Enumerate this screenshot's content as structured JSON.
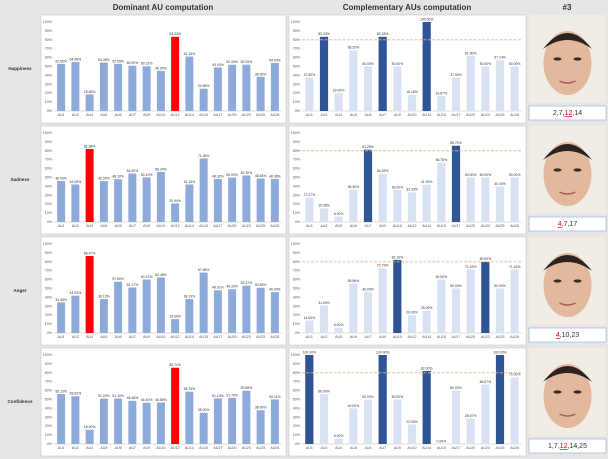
{
  "headers": [
    "Dominant AU computation",
    "Complementary AUs computation",
    "#3"
  ],
  "rows": [
    {
      "label": "Happiness",
      "codes": [
        "2,7,",
        "12",
        ",14"
      ],
      "highlight": 1
    },
    {
      "label": "Sadness",
      "codes": [
        "4",
        ",7,17"
      ],
      "highlight": 0
    },
    {
      "label": "Anger",
      "codes": [
        "4",
        ",10,23"
      ],
      "highlight": 0
    },
    {
      "label": "Confidence",
      "codes": [
        "1,7,",
        "12",
        ",14,25"
      ],
      "highlight": 1
    }
  ],
  "chart_data": [
    {
      "type": "bar",
      "categories": [
        "AU1",
        "AU2",
        "AU4",
        "AU5",
        "AU6",
        "AU7",
        "AU9",
        "AU10",
        "AU12",
        "AU14",
        "AU15",
        "AU17",
        "AU20",
        "AU23",
        "AU25",
        "AU26"
      ],
      "values": [
        52.95,
        54.98,
        18.58,
        54.35,
        52.95,
        50.92,
        50.23,
        45.0,
        83.33,
        61.15,
        24.96,
        49.0,
        52.0,
        52.0,
        38.35,
        54.0
      ],
      "value_labels": [
        "52.95%",
        "54.98%",
        "18.58%",
        "54.35%",
        "52.95%",
        "50.92%",
        "50.23%",
        "45.00%",
        "83.33%",
        "61.15%",
        "24.96%",
        "49.00%",
        "52.00%",
        "52.00%",
        "38.35%",
        "54.00%"
      ],
      "bar_colors": [
        "#8eaadb",
        "#8eaadb",
        "#8eaadb",
        "#8eaadb",
        "#8eaadb",
        "#8eaadb",
        "#8eaadb",
        "#8eaadb",
        "#ff0000",
        "#8eaadb",
        "#8eaadb",
        "#8eaadb",
        "#8eaadb",
        "#8eaadb",
        "#8eaadb",
        "#8eaadb"
      ],
      "ylim": [
        0,
        100
      ],
      "yticks": [
        {
          "value": 0,
          "label": "0%"
        },
        {
          "value": 10,
          "label": "10%"
        },
        {
          "value": 20,
          "label": "20%"
        },
        {
          "value": 30,
          "label": "30%"
        },
        {
          "value": 40,
          "label": "40%"
        },
        {
          "value": 50,
          "label": "50%"
        },
        {
          "value": 60,
          "label": "60%"
        },
        {
          "value": 70,
          "label": "70%"
        },
        {
          "value": 80,
          "label": "80%"
        },
        {
          "value": 90,
          "label": "90%"
        },
        {
          "value": 100,
          "label": "100%"
        }
      ]
    },
    {
      "type": "bar",
      "categories": [
        "AU1",
        "AU2",
        "AU4",
        "AU5",
        "AU6",
        "AU7",
        "AU9",
        "AU10",
        "AU14",
        "AU15",
        "AU17",
        "AU20",
        "AU23",
        "AU25",
        "AU26"
      ],
      "values": [
        37.5,
        83.33,
        20.0,
        68.25,
        50.0,
        83.33,
        50.0,
        18.18,
        100.0,
        16.67,
        37.5,
        61.9,
        50.0,
        57.14,
        50.0
      ],
      "value_labels": [
        "37.50%",
        "83.33%",
        "20.00%",
        "68.25%",
        "50.00%",
        "83.33%",
        "50.00%",
        "18.18%",
        "100.00%",
        "16.67%",
        "37.50%",
        "61.90%",
        "50.00%",
        "57.14%",
        "50.00%"
      ],
      "bar_colors": [
        "#d9e2f3",
        "#2f5597",
        "#d9e2f3",
        "#d9e2f3",
        "#d9e2f3",
        "#2f5597",
        "#d9e2f3",
        "#d9e2f3",
        "#2f5597",
        "#d9e2f3",
        "#d9e2f3",
        "#d9e2f3",
        "#d9e2f3",
        "#d9e2f3",
        "#d9e2f3"
      ],
      "reference_line": {
        "value": 80,
        "color": "#f4b183"
      },
      "ylim": [
        0,
        100
      ],
      "yticks": [
        {
          "value": 0,
          "label": "0%"
        },
        {
          "value": 10,
          "label": "10%"
        },
        {
          "value": 20,
          "label": "20%"
        },
        {
          "value": 30,
          "label": "30%"
        },
        {
          "value": 40,
          "label": "40%"
        },
        {
          "value": 50,
          "label": "50%"
        },
        {
          "value": 60,
          "label": "60%"
        },
        {
          "value": 70,
          "label": "70%"
        },
        {
          "value": 80,
          "label": "80%"
        },
        {
          "value": 90,
          "label": "90%"
        },
        {
          "value": 100,
          "label": "100%"
        }
      ]
    },
    {
      "type": "bar",
      "categories": [
        "AU1",
        "AU2",
        "AU4",
        "AU5",
        "AU6",
        "AU7",
        "AU9",
        "AU10",
        "AU12",
        "AU14",
        "AU15",
        "AU17",
        "AU20",
        "AU23",
        "AU25",
        "AU26"
      ],
      "values": [
        46.06,
        42.09,
        81.98,
        46.0,
        48.1,
        54.5,
        50.1,
        56.24,
        20.94,
        42.1,
        71.36,
        48.32,
        50.0,
        52.3,
        48.84,
        48.38
      ],
      "value_labels": [
        "46.06%",
        "42.09%",
        "81.98%",
        "46.00%",
        "48.10%",
        "54.50%",
        "50.10%",
        "56.24%",
        "20.94%",
        "42.10%",
        "71.36%",
        "48.32%",
        "50.00%",
        "52.30%",
        "48.84%",
        "48.38%"
      ],
      "bar_colors": [
        "#8eaadb",
        "#8eaadb",
        "#ff0000",
        "#8eaadb",
        "#8eaadb",
        "#8eaadb",
        "#8eaadb",
        "#8eaadb",
        "#8eaadb",
        "#8eaadb",
        "#8eaadb",
        "#8eaadb",
        "#8eaadb",
        "#8eaadb",
        "#8eaadb",
        "#8eaadb"
      ],
      "ylim": [
        0,
        100
      ],
      "yticks": [
        {
          "value": 0,
          "label": "0%"
        },
        {
          "value": 10,
          "label": "10%"
        },
        {
          "value": 20,
          "label": "20%"
        },
        {
          "value": 30,
          "label": "30%"
        },
        {
          "value": 40,
          "label": "40%"
        },
        {
          "value": 50,
          "label": "50%"
        },
        {
          "value": 60,
          "label": "60%"
        },
        {
          "value": 70,
          "label": "70%"
        },
        {
          "value": 80,
          "label": "80%"
        },
        {
          "value": 90,
          "label": "90%"
        },
        {
          "value": 100,
          "label": "100%"
        }
      ]
    },
    {
      "type": "bar",
      "categories": [
        "AU1",
        "AU2",
        "AU5",
        "AU6",
        "AU7",
        "AU9",
        "AU10",
        "AU12",
        "AU14",
        "AU15",
        "AU17",
        "AU20",
        "AU23",
        "AU25",
        "AU26"
      ],
      "values": [
        27.27,
        15.38,
        6.0,
        36.36,
        81.25,
        54.29,
        36.0,
        33.33,
        41.9,
        66.78,
        85.71,
        50.0,
        50.0,
        40.0,
        50.0
      ],
      "value_labels": [
        "27.27%",
        "15.38%",
        "6.00%",
        "36.36%",
        "81.25%",
        "54.29%",
        "36.00%",
        "33.33%",
        "41.90%",
        "66.78%",
        "85.71%",
        "50.00%",
        "50.00%",
        "40.00%",
        "50.00%"
      ],
      "bar_colors": [
        "#d9e2f3",
        "#d9e2f3",
        "#d9e2f3",
        "#d9e2f3",
        "#2f5597",
        "#d9e2f3",
        "#d9e2f3",
        "#d9e2f3",
        "#d9e2f3",
        "#d9e2f3",
        "#2f5597",
        "#d9e2f3",
        "#d9e2f3",
        "#d9e2f3",
        "#d9e2f3"
      ],
      "reference_line": {
        "value": 80,
        "color": "#f4b183"
      },
      "ylim": [
        0,
        100
      ],
      "yticks": [
        {
          "value": 0,
          "label": "0%"
        },
        {
          "value": 10,
          "label": "10%"
        },
        {
          "value": 20,
          "label": "20%"
        },
        {
          "value": 30,
          "label": "30%"
        },
        {
          "value": 40,
          "label": "40%"
        },
        {
          "value": 50,
          "label": "50%"
        },
        {
          "value": 60,
          "label": "60%"
        },
        {
          "value": 70,
          "label": "70%"
        },
        {
          "value": 80,
          "label": "80%"
        },
        {
          "value": 90,
          "label": "90%"
        },
        {
          "value": 100,
          "label": "100%"
        }
      ]
    },
    {
      "type": "bar",
      "categories": [
        "AU1",
        "AU2",
        "AU4",
        "AU5",
        "AU6",
        "AU7",
        "AU9",
        "AU10",
        "AU12",
        "AU14",
        "AU15",
        "AU17",
        "AU20",
        "AU23",
        "AU25",
        "AU26"
      ],
      "values": [
        34.38,
        41.93,
        86.47,
        38.13,
        57.6,
        51.17,
        60.12,
        62.45,
        15.6,
        38.13,
        67.88,
        48.01,
        49.2,
        53.27,
        50.83,
        46.0
      ],
      "value_labels": [
        "34.38%",
        "41.93%",
        "86.47%",
        "38.13%",
        "57.60%",
        "51.17%",
        "60.12%",
        "62.45%",
        "15.60%",
        "38.13%",
        "67.88%",
        "48.01%",
        "49.20%",
        "53.27%",
        "50.83%",
        "46.00%"
      ],
      "bar_colors": [
        "#8eaadb",
        "#8eaadb",
        "#ff0000",
        "#8eaadb",
        "#8eaadb",
        "#8eaadb",
        "#8eaadb",
        "#8eaadb",
        "#8eaadb",
        "#8eaadb",
        "#8eaadb",
        "#8eaadb",
        "#8eaadb",
        "#8eaadb",
        "#8eaadb",
        "#8eaadb"
      ],
      "ylim": [
        0,
        100
      ],
      "yticks": [
        {
          "value": 0,
          "label": "0%"
        },
        {
          "value": 10,
          "label": "10%"
        },
        {
          "value": 20,
          "label": "20%"
        },
        {
          "value": 30,
          "label": "30%"
        },
        {
          "value": 40,
          "label": "40%"
        },
        {
          "value": 50,
          "label": "50%"
        },
        {
          "value": 60,
          "label": "60%"
        },
        {
          "value": 70,
          "label": "70%"
        },
        {
          "value": 80,
          "label": "80%"
        },
        {
          "value": 90,
          "label": "90%"
        },
        {
          "value": 100,
          "label": "100%"
        }
      ]
    },
    {
      "type": "bar",
      "categories": [
        "AU1",
        "AU2",
        "AU5",
        "AU6",
        "AU7",
        "AU9",
        "AU10",
        "AU12",
        "AU14",
        "AU15",
        "AU17",
        "AU20",
        "AU23",
        "AU25",
        "AU26"
      ],
      "values": [
        14.0,
        31.0,
        6.0,
        55.56,
        46.0,
        72.73,
        82.1,
        20.0,
        25.0,
        60.0,
        50.0,
        71.43,
        80.0,
        50.0,
        71.43
      ],
      "value_labels": [
        "14.00%",
        "31.00%",
        "6.00%",
        "55.56%",
        "46.00%",
        "72.73%",
        "82.10%",
        "20.00%",
        "25.00%",
        "60.00%",
        "50.00%",
        "71.43%",
        "80.00%",
        "50.00%",
        "71.43%"
      ],
      "bar_colors": [
        "#d9e2f3",
        "#d9e2f3",
        "#d9e2f3",
        "#d9e2f3",
        "#d9e2f3",
        "#d9e2f3",
        "#2f5597",
        "#d9e2f3",
        "#d9e2f3",
        "#d9e2f3",
        "#d9e2f3",
        "#d9e2f3",
        "#2f5597",
        "#d9e2f3",
        "#d9e2f3"
      ],
      "reference_line": {
        "value": 80,
        "color": "#f4b183"
      },
      "ylim": [
        0,
        100
      ],
      "yticks": [
        {
          "value": 0,
          "label": "0%"
        },
        {
          "value": 10,
          "label": "10%"
        },
        {
          "value": 20,
          "label": "20%"
        },
        {
          "value": 30,
          "label": "30%"
        },
        {
          "value": 40,
          "label": "40%"
        },
        {
          "value": 50,
          "label": "50%"
        },
        {
          "value": 60,
          "label": "60%"
        },
        {
          "value": 70,
          "label": "70%"
        },
        {
          "value": 80,
          "label": "80%"
        },
        {
          "value": 90,
          "label": "90%"
        },
        {
          "value": 100,
          "label": "100%"
        }
      ]
    },
    {
      "type": "bar",
      "categories": [
        "AU1",
        "AU2",
        "AU4",
        "AU5",
        "AU6",
        "AU7",
        "AU9",
        "AU10",
        "AU12",
        "AU14",
        "AU15",
        "AU17",
        "AU20",
        "AU23",
        "AU25",
        "AU26"
      ],
      "values": [
        56.13,
        53.62,
        16.0,
        51.0,
        51.1,
        48.48,
        46.4,
        46.58,
        85.71,
        58.75,
        35.0,
        51.1,
        51.79,
        59.88,
        38.0,
        50.11
      ],
      "value_labels": [
        "56.13%",
        "53.62%",
        "16.00%",
        "51.00%",
        "51.10%",
        "48.48%",
        "46.40%",
        "46.58%",
        "85.71%",
        "58.75%",
        "35.00%",
        "51.10%",
        "51.79%",
        "59.88%",
        "38.00%",
        "50.11%"
      ],
      "bar_colors": [
        "#8eaadb",
        "#8eaadb",
        "#8eaadb",
        "#8eaadb",
        "#8eaadb",
        "#8eaadb",
        "#8eaadb",
        "#8eaadb",
        "#ff0000",
        "#8eaadb",
        "#8eaadb",
        "#8eaadb",
        "#8eaadb",
        "#8eaadb",
        "#8eaadb",
        "#8eaadb"
      ],
      "ylim": [
        0,
        100
      ],
      "yticks": [
        {
          "value": 0,
          "label": "0%"
        },
        {
          "value": 10,
          "label": "10%"
        },
        {
          "value": 20,
          "label": "20%"
        },
        {
          "value": 30,
          "label": "30%"
        },
        {
          "value": 40,
          "label": "40%"
        },
        {
          "value": 50,
          "label": "50%"
        },
        {
          "value": 60,
          "label": "60%"
        },
        {
          "value": 70,
          "label": "70%"
        },
        {
          "value": 80,
          "label": "80%"
        },
        {
          "value": 90,
          "label": "90%"
        },
        {
          "value": 100,
          "label": "100%"
        }
      ]
    },
    {
      "type": "bar",
      "categories": [
        "AU1",
        "AU2",
        "AU4",
        "AU5",
        "AU6",
        "AU7",
        "AU9",
        "AU10",
        "AU14",
        "AU15",
        "AU17",
        "AU20",
        "AU23",
        "AU25",
        "AU26"
      ],
      "values": [
        100.0,
        56.0,
        6.0,
        40.0,
        50.0,
        100.0,
        50.0,
        22.0,
        82.0,
        0.0,
        60.0,
        28.57,
        66.67,
        100.0,
        75.0
      ],
      "value_labels": [
        "100.00%",
        "56.00%",
        "6.00%",
        "40.00%",
        "50.00%",
        "100.00%",
        "50.00%",
        "22.00%",
        "82.00%",
        "0.00%",
        "60.00%",
        "28.57%",
        "66.67%",
        "100.00%",
        "75.00%"
      ],
      "bar_colors": [
        "#2f5597",
        "#d9e2f3",
        "#d9e2f3",
        "#d9e2f3",
        "#d9e2f3",
        "#2f5597",
        "#d9e2f3",
        "#d9e2f3",
        "#2f5597",
        "#d9e2f3",
        "#d9e2f3",
        "#d9e2f3",
        "#d9e2f3",
        "#2f5597",
        "#d9e2f3"
      ],
      "reference_line": {
        "value": 80,
        "color": "#f4b183"
      },
      "ylim": [
        0,
        100
      ],
      "yticks": [
        {
          "value": 0,
          "label": "0%"
        },
        {
          "value": 10,
          "label": "10%"
        },
        {
          "value": 20,
          "label": "20%"
        },
        {
          "value": 30,
          "label": "30%"
        },
        {
          "value": 40,
          "label": "40%"
        },
        {
          "value": 50,
          "label": "50%"
        },
        {
          "value": 60,
          "label": "60%"
        },
        {
          "value": 70,
          "label": "70%"
        },
        {
          "value": 80,
          "label": "80%"
        },
        {
          "value": 90,
          "label": "90%"
        },
        {
          "value": 100,
          "label": "100%"
        }
      ]
    }
  ]
}
